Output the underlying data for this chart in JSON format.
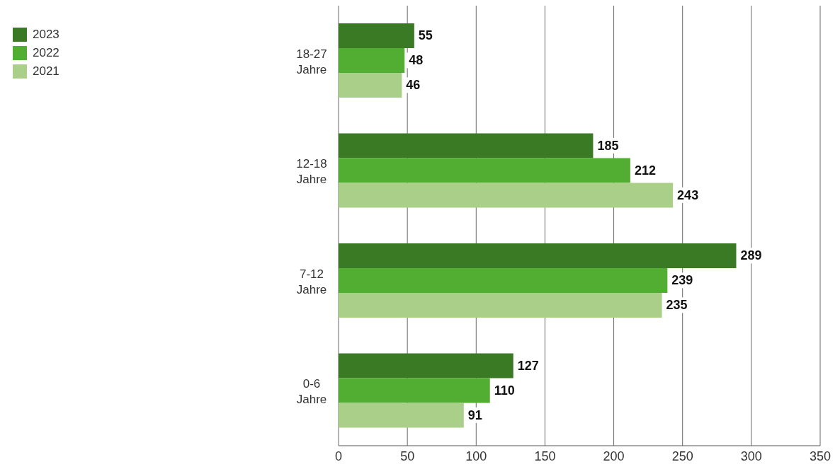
{
  "chart_data": {
    "type": "bar",
    "orientation": "horizontal",
    "categories": [
      "18-27 Jahre",
      "12-18 Jahre",
      "7-12 Jahre",
      "0-6 Jahre"
    ],
    "series": [
      {
        "name": "2023",
        "color": "#3a7a24",
        "values": [
          55,
          185,
          289,
          127
        ]
      },
      {
        "name": "2022",
        "color": "#52ad33",
        "values": [
          48,
          212,
          239,
          110
        ]
      },
      {
        "name": "2021",
        "color": "#a9cf88",
        "values": [
          46,
          243,
          235,
          91
        ]
      }
    ],
    "xlim": [
      0,
      350
    ],
    "xticks": [
      0,
      50,
      100,
      150,
      200,
      250,
      300,
      350
    ],
    "grid": "x",
    "legend": "top left",
    "data_labels": true
  }
}
